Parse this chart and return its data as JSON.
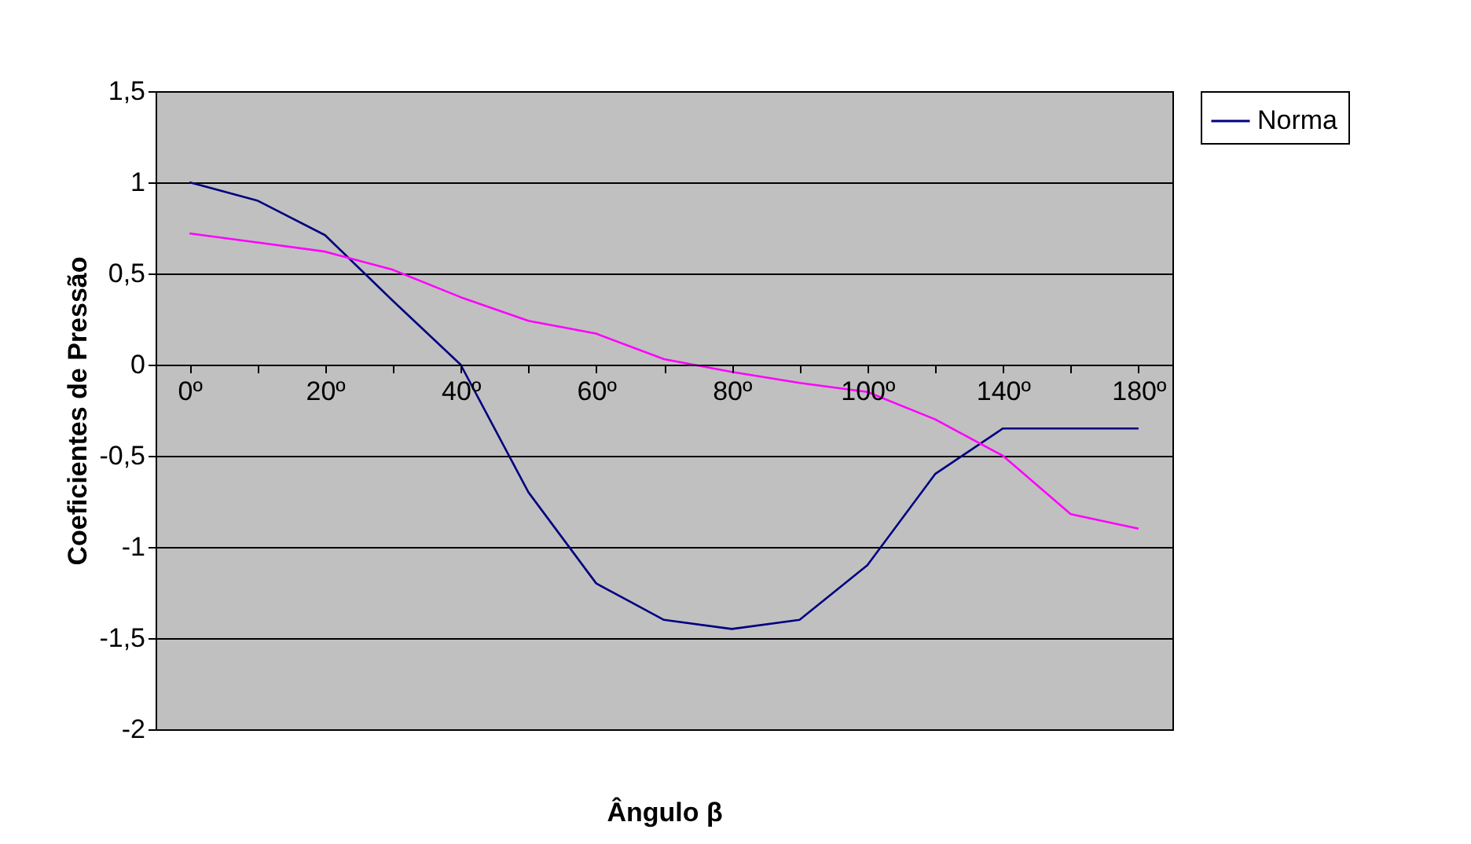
{
  "chart_data": {
    "type": "line",
    "xlabel": "Ângulo β",
    "ylabel": "Coeficientes de Pressão",
    "categories": [
      "0º",
      null,
      "20º",
      null,
      "40º",
      null,
      "60º",
      null,
      "80º",
      null,
      "100º",
      null,
      "140º",
      null,
      "180º"
    ],
    "series": [
      {
        "name": "Norma",
        "color": "#000080",
        "values": [
          1.0,
          0.9,
          0.71,
          0.35,
          0.0,
          -0.7,
          -1.2,
          -1.4,
          -1.45,
          -1.4,
          -1.1,
          -0.6,
          -0.35,
          -0.35,
          -0.35
        ]
      },
      {
        "color": "#ff00ff",
        "values": [
          0.72,
          0.67,
          0.62,
          0.52,
          0.37,
          0.24,
          0.17,
          0.03,
          -0.04,
          -0.1,
          -0.15,
          -0.3,
          -0.5,
          -0.82,
          -0.9
        ]
      }
    ],
    "ylim": [
      -2,
      1.5
    ],
    "yticks": [
      {
        "value": -2,
        "label": "-2"
      },
      {
        "value": -1.5,
        "label": "-1,5"
      },
      {
        "value": -1,
        "label": "-1"
      },
      {
        "value": -0.5,
        "label": "-0,5"
      },
      {
        "value": 0,
        "label": "0"
      },
      {
        "value": 0.5,
        "label": "0,5"
      },
      {
        "value": 1,
        "label": "1"
      },
      {
        "value": 1.5,
        "label": "1,5"
      }
    ],
    "grid": "y",
    "legend": "right",
    "marker": "none",
    "line_style": "solid"
  }
}
